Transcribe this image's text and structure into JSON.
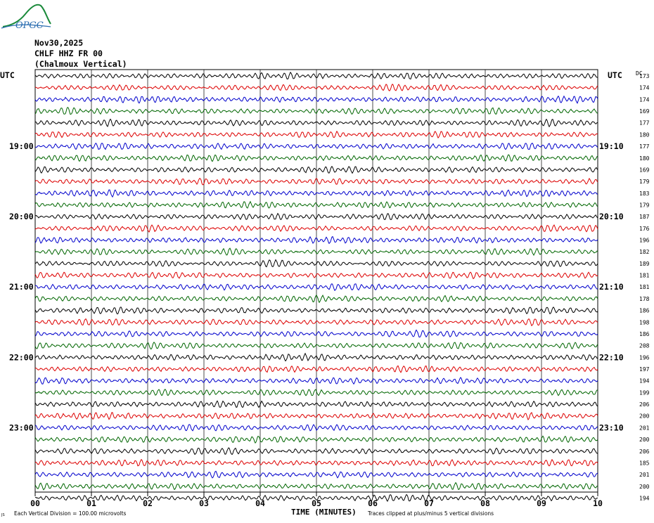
{
  "logo": {
    "text": "OPGC"
  },
  "header": {
    "date": "Nov30,2025",
    "station": "CHLF HHZ FR 00",
    "location": "(Chalmoux Vertical)"
  },
  "chart_data": {
    "type": "line",
    "subtype": "helicorder",
    "title": "",
    "xlabel": "TIME (MINUTES)",
    "ylabel": "",
    "left_axis_title": "UTC",
    "right_axis_title": "UTC",
    "dc_header": "DC",
    "x_ticks": [
      "00",
      "01",
      "02",
      "03",
      "04",
      "05",
      "06",
      "07",
      "08",
      "09",
      "10"
    ],
    "xlim": [
      0,
      10
    ],
    "left_hour_labels": [
      "19:00",
      "20:00",
      "21:00",
      "22:00",
      "23:00"
    ],
    "right_hour_labels": [
      "19:10",
      "20:10",
      "21:10",
      "22:10",
      "23:10"
    ],
    "trace_colors": [
      "#000000",
      "#dd0000",
      "#0000cc",
      "#006600"
    ],
    "trace_dc_offsets": [
      173,
      174,
      174,
      169,
      177,
      180,
      177,
      180,
      169,
      179,
      183,
      179,
      187,
      176,
      196,
      182,
      189,
      181,
      181,
      178,
      186,
      198,
      186,
      208,
      196,
      197,
      194,
      199,
      206,
      200,
      201,
      200,
      206,
      185,
      201,
      200,
      194
    ],
    "footer_left_mark": "JS",
    "footer_scale": "Each Vertical Division =  100.00 microvolts",
    "footer_clip_note": "Traces clipped at plus/minus 5 vertical divisions"
  }
}
